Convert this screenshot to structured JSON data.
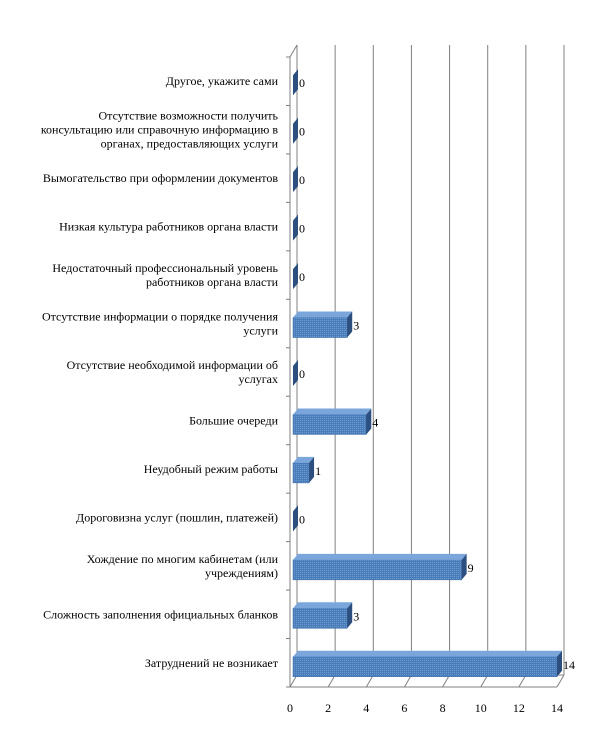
{
  "chart_data": {
    "type": "bar",
    "orientation": "horizontal",
    "style": "3d",
    "title": "",
    "xlabel": "",
    "ylabel": "",
    "categories": [
      "Другое, укажите сами",
      "Отсутствие возможности получить консультацию или справочную информацию в органах, предоставляющих услуги",
      "Вымогательство при оформлении документов",
      "Низкая культура работников органа власти",
      "Недостаточный профессиональный уровень работников органа власти",
      "Отсутствие информации о порядке получения услуги",
      "Отсутствие необходимой информации об услугах",
      "Большие очереди",
      "Неудобный режим работы",
      "Дороговизна услуг (пошлин, платежей)",
      "Хождение по многим кабинетам (или учреждениям)",
      "Сложность заполнения официальных бланков",
      "Затруднений не возникает"
    ],
    "category_lines": [
      [
        "Другое, укажите сами"
      ],
      [
        "Отсутствие возможности получить",
        "консультацию или справочную информацию в",
        "органах, предоставляющих услуги"
      ],
      [
        "Вымогательство при оформлении документов"
      ],
      [
        "Низкая культура работников органа власти"
      ],
      [
        "Недостаточный профессиональный уровень",
        "работников органа власти"
      ],
      [
        "Отсутствие информации о порядке получения",
        "услуги"
      ],
      [
        "Отсутствие необходимой информации об",
        "услугах"
      ],
      [
        "Большие очереди"
      ],
      [
        "Неудобный режим работы"
      ],
      [
        "Дороговизна услуг (пошлин, платежей)"
      ],
      [
        "Хождение по многим кабинетам (или",
        "учреждениям)"
      ],
      [
        "Сложность заполнения официальных бланков"
      ],
      [
        "Затруднений не возникает"
      ]
    ],
    "values": [
      0,
      0,
      0,
      0,
      0,
      3,
      0,
      4,
      1,
      0,
      9,
      3,
      14
    ],
    "xlim": [
      0,
      14
    ],
    "xticks": [
      "0",
      "2",
      "4",
      "6",
      "8",
      "10",
      "12",
      "14"
    ],
    "grid": true,
    "legend": "none",
    "colors": {
      "bar_front": "#4a7ebb",
      "bar_top": "#7aa6dc",
      "bar_side": "#2c4f7f",
      "grid": "#808080"
    }
  }
}
